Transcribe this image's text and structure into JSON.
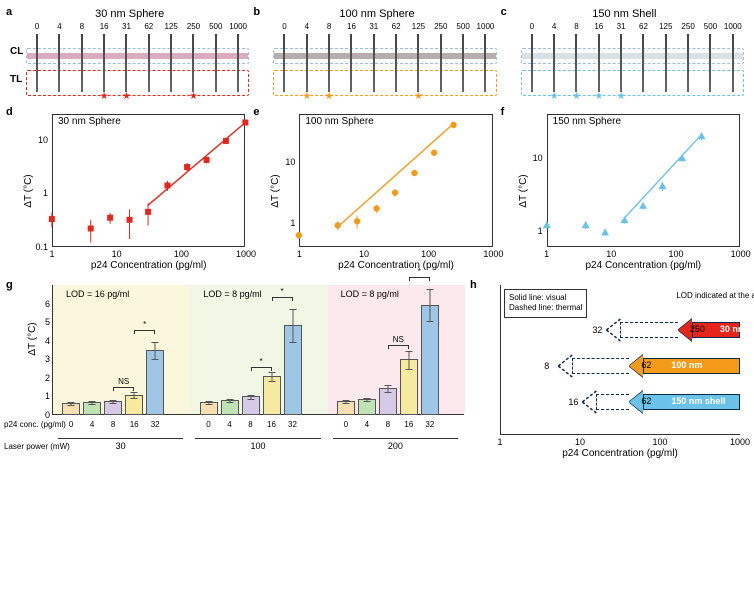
{
  "concentrations": [
    0,
    4,
    8,
    16,
    31,
    62,
    125,
    250,
    500,
    1000
  ],
  "colors": {
    "red": "#e4261b",
    "orange": "#f59b1a",
    "blue": "#6bc2e8",
    "bar_tan": "#f6dfb0",
    "bar_green": "#bfe3b4",
    "bar_lav": "#d7c9e8",
    "bar_yellow": "#f6eaa0",
    "bar_blue": "#9ec6e6",
    "region_a": "#fbf6d9",
    "region_b": "#eef6e2",
    "region_c": "#fce7ec",
    "grey_strip": "#cfc8c8"
  },
  "lfa": {
    "cl_label": "CL",
    "tl_label": "TL",
    "panels": [
      {
        "label": "a",
        "title": "30 nm Sphere",
        "color": "#e4261b",
        "cl_color": "#b96a8a",
        "stars": [
          0,
          0,
          0,
          1,
          1,
          0,
          0,
          1,
          0,
          0
        ]
      },
      {
        "label": "b",
        "title": "100 nm Sphere",
        "color": "#f59b1a",
        "cl_color": "#7a6a6a",
        "stars": [
          0,
          1,
          1,
          0,
          0,
          0,
          1,
          0,
          0,
          0
        ]
      },
      {
        "label": "c",
        "title": "150 nm Shell",
        "color": "#6bc2e8",
        "cl_color": "#b8c8d0",
        "stars": [
          0,
          1,
          1,
          1,
          1,
          0,
          0,
          0,
          0,
          0
        ]
      }
    ]
  },
  "scatter": {
    "xlabel": "p24 Concentration (pg/ml)",
    "ylabel": "ΔT (°C)",
    "xlim": [
      1,
      1000
    ],
    "xticks": [
      1,
      10,
      100,
      1000
    ],
    "panels": [
      {
        "label": "d",
        "title": "30 nm Sphere",
        "color": "#e4261b",
        "ylim": [
          0.1,
          30
        ],
        "yticks": [
          0.1,
          1,
          10
        ],
        "marker": "square",
        "points": [
          {
            "x": 1,
            "y": 0.33,
            "err": 0.1
          },
          {
            "x": 4,
            "y": 0.22,
            "err": 0.1
          },
          {
            "x": 8,
            "y": 0.35,
            "err": 0.08
          },
          {
            "x": 16,
            "y": 0.32,
            "err": 0.18
          },
          {
            "x": 31,
            "y": 0.45,
            "err": 0.2
          },
          {
            "x": 62,
            "y": 1.4,
            "err": 0.3
          },
          {
            "x": 125,
            "y": 3.1,
            "err": 0.6
          },
          {
            "x": 250,
            "y": 4.2,
            "err": 0.6
          },
          {
            "x": 500,
            "y": 9.5,
            "err": 1.2
          },
          {
            "x": 1000,
            "y": 21,
            "err": 2
          }
        ],
        "fit_x": [
          31,
          1000
        ],
        "fit_y": [
          0.6,
          21
        ]
      },
      {
        "label": "e",
        "title": "100 nm Sphere",
        "color": "#f59b1a",
        "ylim": [
          0.4,
          60
        ],
        "yticks": [
          1,
          10
        ],
        "marker": "circle",
        "points": [
          {
            "x": 1,
            "y": 0.62,
            "err": 0.08
          },
          {
            "x": 4,
            "y": 0.9,
            "err": 0.15
          },
          {
            "x": 8,
            "y": 1.05,
            "err": 0.25
          },
          {
            "x": 16,
            "y": 1.7,
            "err": 0.25
          },
          {
            "x": 31,
            "y": 3.1,
            "err": 0.4
          },
          {
            "x": 62,
            "y": 6.5,
            "err": 0.7
          },
          {
            "x": 125,
            "y": 14,
            "err": 1.5
          },
          {
            "x": 250,
            "y": 40,
            "err": 4
          }
        ],
        "fit_x": [
          4,
          250
        ],
        "fit_y": [
          0.85,
          42
        ]
      },
      {
        "label": "f",
        "title": "150 nm Sphere",
        "color": "#6bc2e8",
        "ylim": [
          0.6,
          40
        ],
        "yticks": [
          1,
          10
        ],
        "marker": "triangle",
        "points": [
          {
            "x": 1,
            "y": 1.2,
            "err": 0.15
          },
          {
            "x": 4,
            "y": 1.2,
            "err": 0.15
          },
          {
            "x": 8,
            "y": 0.95,
            "err": 0.1
          },
          {
            "x": 16,
            "y": 1.4,
            "err": 0.15
          },
          {
            "x": 31,
            "y": 2.2,
            "err": 0.25
          },
          {
            "x": 62,
            "y": 4.1,
            "err": 0.6
          },
          {
            "x": 125,
            "y": 10,
            "err": 1.2
          },
          {
            "x": 250,
            "y": 20,
            "err": 2.5
          }
        ],
        "fit_x": [
          16,
          250
        ],
        "fit_y": [
          1.5,
          21
        ]
      }
    ]
  },
  "bars": {
    "label": "g",
    "ylabel": "ΔT (°C)",
    "ylim": [
      0,
      7
    ],
    "yticks": [
      0,
      1,
      2,
      3,
      4,
      5,
      6
    ],
    "concs": [
      0,
      4,
      8,
      16,
      32
    ],
    "row_labels": {
      "conc": "p24 conc. (pg/ml)",
      "laser": "Laser power (mW)"
    },
    "bar_colors": [
      "#f6dfb0",
      "#bfe3b4",
      "#d7c9e8",
      "#f6eaa0",
      "#9ec6e6"
    ],
    "groups": [
      {
        "laser": 30,
        "region_color": "#fbf6d9",
        "lod": "LOD = 16 pg/ml",
        "values": [
          0.65,
          0.7,
          0.75,
          1.1,
          3.5
        ],
        "errs": [
          0.1,
          0.1,
          0.12,
          0.18,
          0.5
        ],
        "sig": [
          {
            "from": 2,
            "to": 3,
            "label": "NS"
          },
          {
            "from": 3,
            "to": 4,
            "label": "*"
          }
        ]
      },
      {
        "laser": 100,
        "region_color": "#eef6e2",
        "lod": "LOD = 8 pg/ml",
        "values": [
          0.7,
          0.8,
          1.0,
          2.1,
          4.85
        ],
        "errs": [
          0.1,
          0.1,
          0.15,
          0.25,
          0.9
        ],
        "sig": [
          {
            "from": 2,
            "to": 3,
            "label": "*"
          },
          {
            "from": 3,
            "to": 4,
            "label": "*"
          }
        ]
      },
      {
        "laser": 200,
        "region_color": "#fce7ec",
        "lod": "LOD = 8 pg/ml",
        "values": [
          0.75,
          0.85,
          1.45,
          3.0,
          5.95
        ],
        "errs": [
          0.12,
          0.12,
          0.2,
          0.5,
          0.9
        ],
        "sig": [
          {
            "from": 2,
            "to": 3,
            "label": "NS"
          },
          {
            "from": 3,
            "to": 4,
            "label": "*"
          }
        ]
      }
    ]
  },
  "arrows": {
    "label": "h",
    "xlabel": "p24 Concentration (pg/ml)",
    "xlim": [
      1,
      1000
    ],
    "xticks": [
      1,
      10,
      100,
      1000
    ],
    "legend": [
      "Solid line: visual",
      "Dashed line: thermal"
    ],
    "side_text": "LOD indicated at the arrowhead",
    "items": [
      {
        "name": "30 nm",
        "color": "#e4261b",
        "visual_from": 1000,
        "visual_to": 250,
        "thermal_to": 32,
        "y": 0
      },
      {
        "name": "100 nm",
        "color": "#f59b1a",
        "visual_from": 1000,
        "visual_to": 62,
        "thermal_to": 8,
        "y": 1
      },
      {
        "name": "150 nm shell",
        "color": "#6bc2e8",
        "visual_from": 1000,
        "visual_to": 62,
        "thermal_to": 16,
        "y": 2
      }
    ]
  }
}
